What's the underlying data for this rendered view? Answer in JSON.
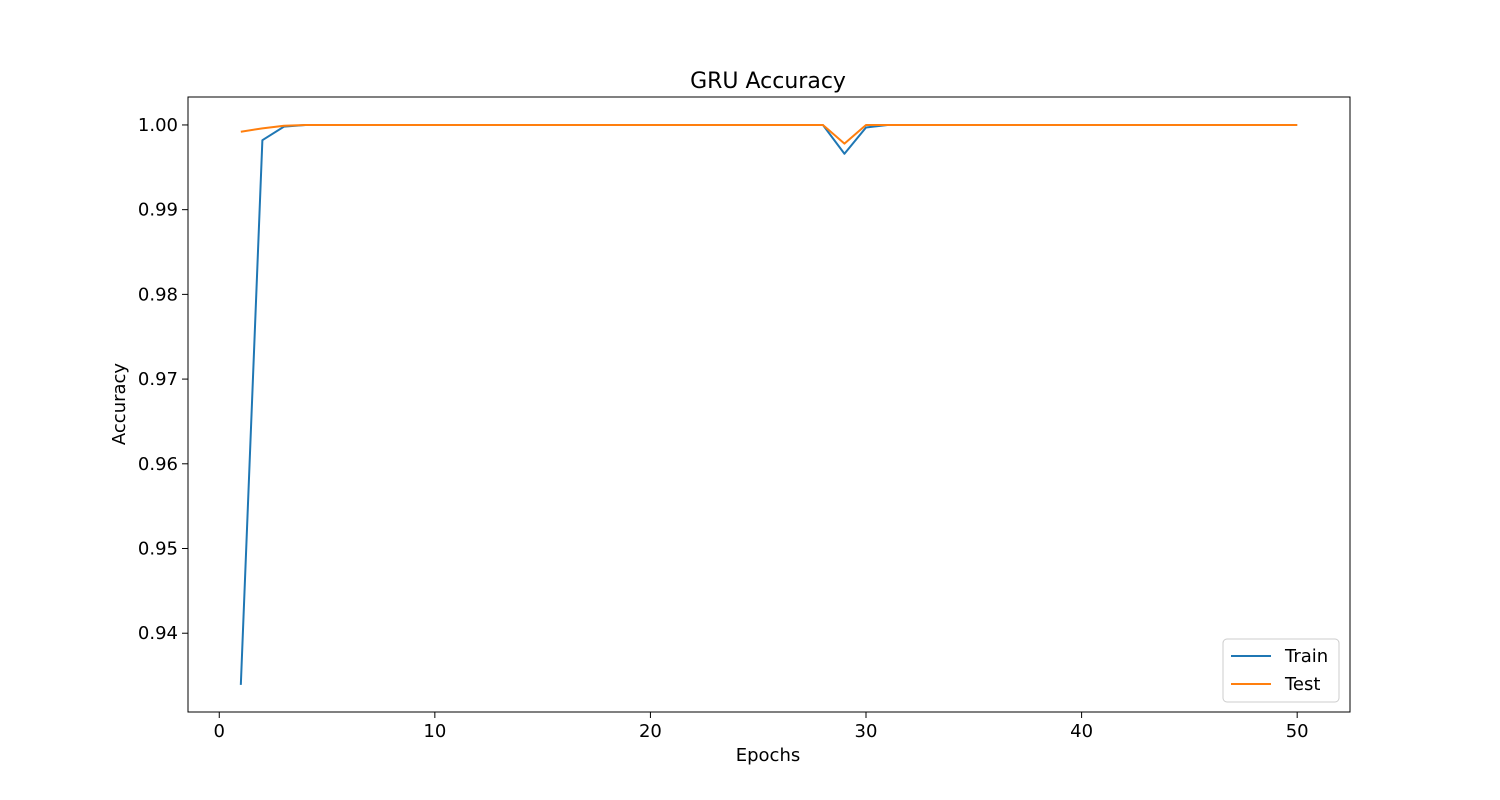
{
  "chart_data": {
    "type": "line",
    "title": "GRU Accuracy",
    "xlabel": "Epochs",
    "ylabel": "Accuracy",
    "xlim": [
      -1.45,
      52.45
    ],
    "ylim": [
      0.9307,
      1.0033
    ],
    "xticks": [
      0,
      10,
      20,
      30,
      40,
      50
    ],
    "xtick_labels": [
      "0",
      "10",
      "20",
      "30",
      "40",
      "50"
    ],
    "yticks": [
      0.94,
      0.95,
      0.96,
      0.97,
      0.98,
      0.99,
      1.0
    ],
    "ytick_labels": [
      "0.94",
      "0.95",
      "0.96",
      "0.97",
      "0.98",
      "0.99",
      "1.00"
    ],
    "grid": false,
    "legend_position": "lower-right",
    "x": [
      1,
      2,
      3,
      4,
      5,
      6,
      7,
      8,
      9,
      10,
      11,
      12,
      13,
      14,
      15,
      16,
      17,
      18,
      19,
      20,
      21,
      22,
      23,
      24,
      25,
      26,
      27,
      28,
      29,
      30,
      31,
      32,
      33,
      34,
      35,
      36,
      37,
      38,
      39,
      40,
      41,
      42,
      43,
      44,
      45,
      46,
      47,
      48,
      49,
      50
    ],
    "series": [
      {
        "name": "Train",
        "color": "#1f77b4",
        "values": [
          0.9339,
          0.9982,
          0.9998,
          1.0,
          1.0,
          1.0,
          1.0,
          1.0,
          1.0,
          1.0,
          1.0,
          1.0,
          1.0,
          1.0,
          1.0,
          1.0,
          1.0,
          1.0,
          1.0,
          1.0,
          1.0,
          1.0,
          1.0,
          1.0,
          1.0,
          1.0,
          1.0,
          1.0,
          0.9966,
          0.9997,
          1.0,
          1.0,
          1.0,
          1.0,
          1.0,
          1.0,
          1.0,
          1.0,
          1.0,
          1.0,
          1.0,
          1.0,
          1.0,
          1.0,
          1.0,
          1.0,
          1.0,
          1.0,
          1.0,
          1.0
        ]
      },
      {
        "name": "Test",
        "color": "#ff7f0e",
        "values": [
          0.9992,
          0.9996,
          0.9999,
          1.0,
          1.0,
          1.0,
          1.0,
          1.0,
          1.0,
          1.0,
          1.0,
          1.0,
          1.0,
          1.0,
          1.0,
          1.0,
          1.0,
          1.0,
          1.0,
          1.0,
          1.0,
          1.0,
          1.0,
          1.0,
          1.0,
          1.0,
          1.0,
          1.0,
          0.9978,
          1.0,
          1.0,
          1.0,
          1.0,
          1.0,
          1.0,
          1.0,
          1.0,
          1.0,
          1.0,
          1.0,
          1.0,
          1.0,
          1.0,
          1.0,
          1.0,
          1.0,
          1.0,
          1.0,
          1.0,
          1.0
        ]
      }
    ]
  }
}
